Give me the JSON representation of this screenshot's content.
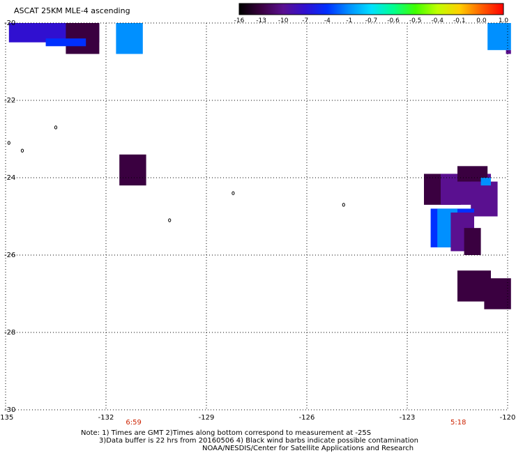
{
  "title": "ASCAT 25KM MLE-4 ascending",
  "colorbar": {
    "labels": [
      "-16",
      "-13",
      "-10",
      "-7",
      "-4",
      "-1",
      "-0.7",
      "-0.6",
      "-0.5",
      "-0.4",
      "-0.1",
      "0.0",
      "1.0"
    ],
    "colors": [
      "#000000",
      "#3a0040",
      "#5a1090",
      "#3010d0",
      "#0030ff",
      "#0090ff",
      "#00e0ff",
      "#00ff90",
      "#40ff00",
      "#c0ff00",
      "#ffd000",
      "#ff6000",
      "#ff0000"
    ]
  },
  "axes": {
    "lon_ticks": [
      "-135",
      "-132",
      "-129",
      "-126",
      "-123",
      "-120"
    ],
    "lat_ticks": [
      "-20",
      "-22",
      "-24",
      "-26",
      "-28",
      "-30"
    ],
    "lon_range": [
      -135,
      -120
    ],
    "lat_range": [
      -30,
      -20
    ]
  },
  "swaths": [
    {
      "lon": [
        -134.9,
        -132.2
      ],
      "lat": [
        -20.0,
        -20.5
      ],
      "value": -8
    },
    {
      "lon": [
        -133.2,
        -132.2
      ],
      "lat": [
        -20.0,
        -20.8
      ],
      "value": -14
    },
    {
      "lon": [
        -133.8,
        -132.6
      ],
      "lat": [
        -20.4,
        -20.6
      ],
      "value": -5
    },
    {
      "lon": [
        -131.7,
        -130.9
      ],
      "lat": [
        -20.0,
        -20.8
      ],
      "value": -3
    },
    {
      "lon": [
        -131.6,
        -130.8
      ],
      "lat": [
        -23.4,
        -24.2
      ],
      "value": -15
    },
    {
      "lon": [
        -122.5,
        -121.4
      ],
      "lat": [
        -23.9,
        -24.7
      ],
      "value": -14
    },
    {
      "lon": [
        -122.0,
        -120.5
      ],
      "lat": [
        -23.9,
        -24.7
      ],
      "value": -12
    },
    {
      "lon": [
        -121.5,
        -120.6
      ],
      "lat": [
        -23.7,
        -24.1
      ],
      "value": -15
    },
    {
      "lon": [
        -121.1,
        -120.3
      ],
      "lat": [
        -24.1,
        -25.0
      ],
      "value": -13
    },
    {
      "lon": [
        -120.8,
        -120.5
      ],
      "lat": [
        -24.0,
        -24.2
      ],
      "value": -4
    },
    {
      "lon": [
        -122.3,
        -121.0
      ],
      "lat": [
        -24.8,
        -25.8
      ],
      "value": -7
    },
    {
      "lon": [
        -122.1,
        -121.5
      ],
      "lat": [
        -24.8,
        -25.8
      ],
      "value": -3
    },
    {
      "lon": [
        -121.7,
        -121.0
      ],
      "lat": [
        -24.9,
        -25.9
      ],
      "value": -12
    },
    {
      "lon": [
        -121.3,
        -120.8
      ],
      "lat": [
        -25.3,
        -26.0
      ],
      "value": -15
    },
    {
      "lon": [
        -121.5,
        -120.5
      ],
      "lat": [
        -26.4,
        -27.2
      ],
      "value": -15
    },
    {
      "lon": [
        -120.7,
        -119.9
      ],
      "lat": [
        -26.6,
        -27.4
      ],
      "value": -15
    },
    {
      "lon": [
        -120.6,
        -119.9
      ],
      "lat": [
        -20.0,
        -20.7
      ],
      "value": -3
    },
    {
      "lon": [
        -120.05,
        -119.9
      ],
      "lat": [
        -20.7,
        -20.8
      ],
      "value": -13
    }
  ],
  "islands": [
    {
      "lon": -133.5,
      "lat": -22.7
    },
    {
      "lon": -134.9,
      "lat": -23.1
    },
    {
      "lon": -134.5,
      "lat": -23.3
    },
    {
      "lon": -128.2,
      "lat": -24.4
    },
    {
      "lon": -130.1,
      "lat": -25.1
    },
    {
      "lon": -124.9,
      "lat": -24.7
    }
  ],
  "bottom_times": [
    {
      "text": "6:59",
      "lon": -131.2
    },
    {
      "text": "5:18",
      "lon": -121.5
    }
  ],
  "notes": {
    "line1": "Note: 1) Times are GMT 2)Times along bottom correspond to measurement at -25S",
    "line2": "3)Data buffer is 22 hrs from 20160506 4) Black wind barbs indicate possible contamination",
    "line3": "NOAA/NESDIS/Center for Satellite Applications and Research"
  }
}
